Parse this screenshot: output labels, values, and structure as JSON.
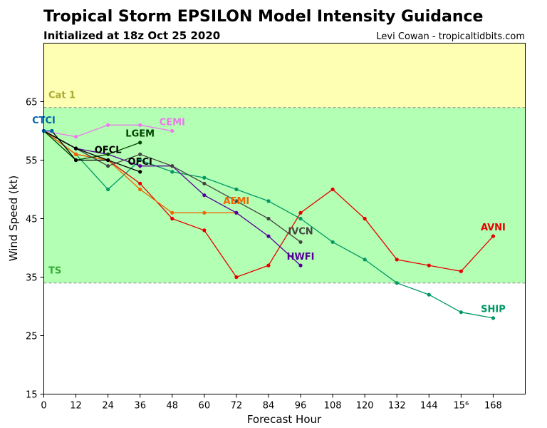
{
  "chart_data": {
    "type": "line",
    "title": "Tropical Storm EPSILON Model Intensity Guidance",
    "subtitle": "Initialized at 18z Oct 25 2020",
    "credit": "Levi Cowan - tropicaltidbits.com",
    "xlabel": "Forecast Hour",
    "ylabel": "Wind Speed (kt)",
    "xlim": [
      0,
      180
    ],
    "ylim": [
      15,
      75
    ],
    "xticks": [
      0,
      12,
      24,
      36,
      48,
      60,
      72,
      84,
      96,
      108,
      120,
      132,
      144,
      156,
      168
    ],
    "xtick_labels": [
      "0",
      "12",
      "24",
      "36",
      "48",
      "60",
      "72",
      "84",
      "96",
      "108",
      "120",
      "132",
      "144",
      "15⁶",
      "168"
    ],
    "yticks": [
      15,
      25,
      35,
      45,
      55,
      65
    ],
    "yticks_labels": [
      "15",
      "25",
      "35",
      "45",
      "55",
      "65"
    ],
    "bands": [
      {
        "label": "TS",
        "from": 34,
        "to": 64,
        "color": "#b3ffb3",
        "label_color": "#33aa33"
      },
      {
        "label": "Cat 1",
        "from": 64,
        "to": 75,
        "color": "#ffffb3",
        "label_color": "#aaaa33"
      }
    ],
    "series": [
      {
        "name": "SHIP",
        "color": "#009966",
        "x": [
          0,
          12,
          24,
          36,
          48,
          60,
          72,
          84,
          96,
          108,
          120,
          132,
          144,
          156,
          168
        ],
        "y": [
          60,
          56,
          50,
          55,
          53,
          52,
          50,
          48,
          45,
          41,
          38,
          34,
          32,
          29,
          28
        ]
      },
      {
        "name": "AVNI",
        "color": "#e60000",
        "x": [
          0,
          12,
          24,
          36,
          48,
          60,
          72,
          84,
          96,
          108,
          120,
          132,
          144,
          156,
          168
        ],
        "y": [
          60,
          56,
          55,
          51,
          45,
          43,
          35,
          37,
          46,
          50,
          45,
          38,
          37,
          36,
          42
        ]
      },
      {
        "name": "AEMI",
        "color": "#ee6600",
        "x": [
          0,
          12,
          24,
          36,
          48,
          60,
          72
        ],
        "y": [
          60,
          56,
          55,
          50,
          46,
          46,
          46
        ]
      },
      {
        "name": "HWFI",
        "color": "#550099",
        "x": [
          0,
          12,
          24,
          36,
          48,
          60,
          72,
          84,
          96
        ],
        "y": [
          60,
          57,
          56,
          54,
          54,
          49,
          46,
          42,
          37
        ]
      },
      {
        "name": "IVCN",
        "color": "#444444",
        "x": [
          0,
          12,
          24,
          36,
          48,
          60,
          72,
          84,
          96
        ],
        "y": [
          60,
          57,
          54,
          56,
          54,
          51,
          48,
          45,
          41
        ]
      },
      {
        "name": "CEMI",
        "color": "#ee77ee",
        "x": [
          0,
          12,
          24,
          36,
          48
        ],
        "y": [
          60,
          59,
          61,
          61,
          60
        ]
      },
      {
        "name": "LGEM",
        "color": "#004400",
        "x": [
          0,
          12,
          24,
          36
        ],
        "y": [
          60,
          55,
          56,
          58
        ]
      },
      {
        "name": "OFCL",
        "color": "#000000",
        "x": [
          0,
          12,
          24
        ],
        "y": [
          60,
          57,
          55
        ]
      },
      {
        "name": "OFCI",
        "color": "#000000",
        "x": [
          3,
          12,
          24,
          36
        ],
        "y": [
          60,
          55,
          55,
          53
        ]
      },
      {
        "name": "CTCI",
        "color": "#0066aa",
        "x": [
          0,
          3
        ],
        "y": [
          60,
          60
        ]
      }
    ],
    "series_labels": [
      {
        "name": "SHIP",
        "x": 168,
        "y": 29,
        "anchor": "middle"
      },
      {
        "name": "AVNI",
        "x": 168,
        "y": 43,
        "anchor": "middle"
      },
      {
        "name": "AEMI",
        "x": 72,
        "y": 47.5,
        "anchor": "middle"
      },
      {
        "name": "HWFI",
        "x": 96,
        "y": 38,
        "anchor": "middle"
      },
      {
        "name": "IVCN",
        "x": 96,
        "y": 42.3,
        "anchor": "middle"
      },
      {
        "name": "CEMI",
        "x": 48,
        "y": 61,
        "anchor": "middle"
      },
      {
        "name": "LGEM",
        "x": 36,
        "y": 59,
        "anchor": "middle"
      },
      {
        "name": "OFCL",
        "x": 24,
        "y": 56.2,
        "anchor": "middle"
      },
      {
        "name": "OFCI",
        "x": 36,
        "y": 54.2,
        "anchor": "middle"
      },
      {
        "name": "CTCI",
        "x": 0,
        "y": 61.3,
        "anchor": "middle"
      }
    ],
    "grid": false,
    "legend": "inline"
  }
}
